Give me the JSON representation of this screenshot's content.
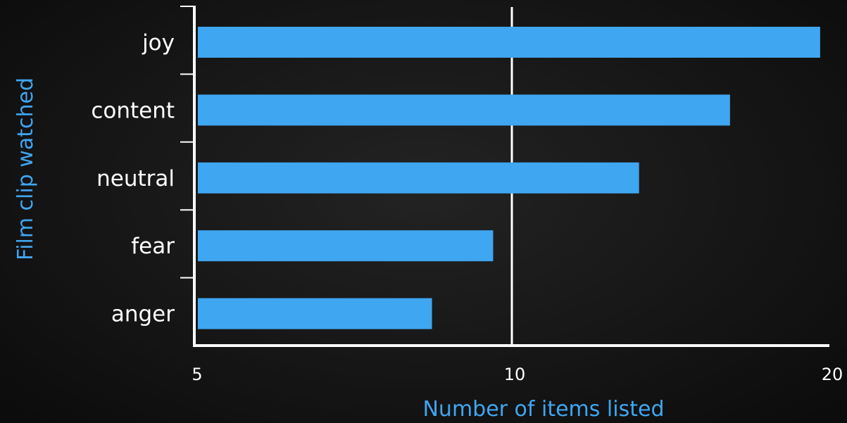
{
  "colors": {
    "background": "#141414",
    "bar": "#3fa6f1",
    "axis": "#ffffff",
    "axis_title": "#3fa6f1",
    "text": "#ffffff"
  },
  "chart_data": {
    "type": "bar",
    "orientation": "horizontal",
    "categories": [
      "joy",
      "content",
      "neutral",
      "fear",
      "anger"
    ],
    "values": [
      19.6,
      16.1,
      13.2,
      9.6,
      8.4
    ],
    "xlabel": "Number of items listed",
    "ylabel": "Film clip watched",
    "x_scale": "log",
    "xlim": [
      5,
      20
    ],
    "x_ticks": [
      5,
      10,
      20
    ],
    "x_tick_labels": [
      "5",
      "10",
      "20"
    ],
    "grid": "vertical line at 10"
  }
}
